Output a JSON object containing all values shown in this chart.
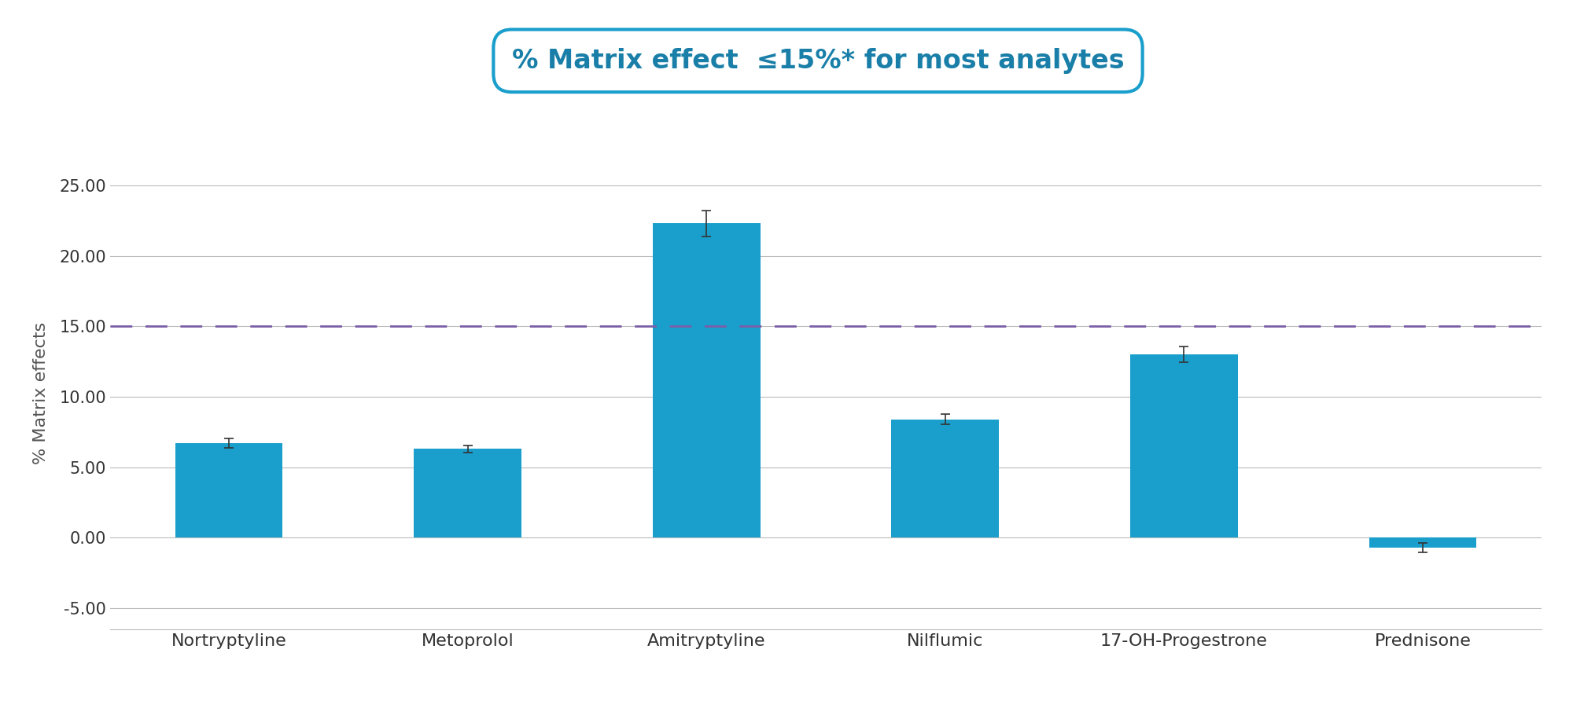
{
  "categories": [
    "Nortryptyline",
    "Metoprolol",
    "Amitryptyline",
    "Nilflumic",
    "17-OH-Progestrone",
    "Prednisone"
  ],
  "values": [
    6.7,
    6.3,
    22.3,
    8.4,
    13.0,
    -0.7
  ],
  "errors": [
    0.35,
    0.25,
    0.9,
    0.35,
    0.55,
    0.35
  ],
  "bar_color": "#1a9fcc",
  "error_color": "#333333",
  "dashed_line_y": 15.0,
  "dashed_line_color": "#7B5EA7",
  "ylabel": "% Matrix effects",
  "ylim": [
    -6.5,
    27.0
  ],
  "yticks": [
    -5.0,
    0.0,
    5.0,
    10.0,
    15.0,
    20.0,
    25.0
  ],
  "ytick_labels": [
    "-5.00",
    "0.00",
    "5.00",
    "10.00",
    "15.00",
    "20.00",
    "25.00"
  ],
  "title_text": "% Matrix effect  ≤15%* for most analytes",
  "title_color": "#1a7fa8",
  "title_box_edge_color": "#1a9fcc",
  "background_color": "#ffffff",
  "grid_color": "#bbbbbb",
  "bar_width": 0.45
}
